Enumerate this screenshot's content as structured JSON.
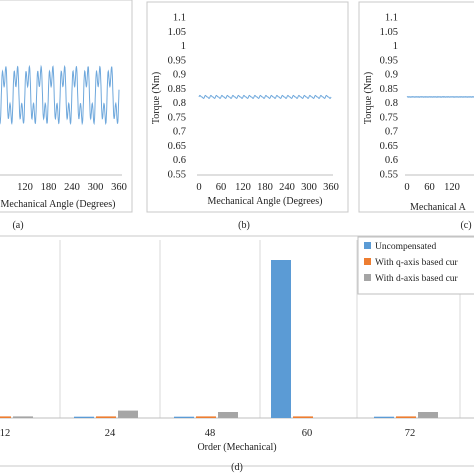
{
  "chart_data": [
    {
      "type": "line",
      "panel": "(a)",
      "xlabel": "Mechanical Angle (Degrees)",
      "x_ticks_visible": [
        "120",
        "180",
        "240",
        "300",
        "360"
      ],
      "xlim": [
        0,
        360
      ],
      "series": [
        {
          "color": "#6fa8dc",
          "pattern": "high-amplitude periodic ripple",
          "cycles": 12
        }
      ]
    },
    {
      "type": "line",
      "panel": "(b)",
      "xlabel": "Mechanical Angle (Degrees)",
      "ylabel": "Torque (Nm)",
      "x_ticks": [
        "0",
        "60",
        "120",
        "180",
        "240",
        "300",
        "360"
      ],
      "y_ticks": [
        "0.55",
        "0.6",
        "0.65",
        "0.7",
        "0.75",
        "0.8",
        "0.85",
        "0.9",
        "0.95",
        "1",
        "1.05",
        "1.1"
      ],
      "xlim": [
        0,
        360
      ],
      "ylim": [
        0.55,
        1.1
      ],
      "series": [
        {
          "color": "#6fa8dc",
          "mean": 0.82,
          "ripple_pk_pk": 0.012,
          "cycles": 24
        }
      ]
    },
    {
      "type": "line",
      "panel": "(c)",
      "xlabel_visible": "Mechanical A",
      "ylabel": "Torque (Nm)",
      "x_ticks_visible": [
        "0",
        "60",
        "120"
      ],
      "y_ticks": [
        "0.55",
        "0.6",
        "0.65",
        "0.7",
        "0.75",
        "0.8",
        "0.85",
        "0.9",
        "0.95",
        "1",
        "1.05",
        "1.1"
      ],
      "ylim": [
        0.55,
        1.1
      ],
      "series": [
        {
          "color": "#6fa8dc",
          "mean": 0.82,
          "ripple_pk_pk": 0.002
        }
      ]
    },
    {
      "type": "bar",
      "panel": "(d)",
      "xlabel": "Order (Mechanical)",
      "categories": [
        "12",
        "24",
        "48",
        "60",
        "72"
      ],
      "ylim": [
        0,
        1
      ],
      "series": [
        {
          "name": "Uncompensated",
          "color": "#5b9bd5",
          "values": [
            0.008,
            0.008,
            0.008,
            1.0,
            0.008
          ]
        },
        {
          "name": "With q-axis based cur",
          "color": "#ed7d31",
          "values": [
            0.01,
            0.01,
            0.01,
            0.01,
            0.01
          ]
        },
        {
          "name": "With d-axis based cur",
          "color": "#a5a5a5",
          "values": [
            0.01,
            0.047,
            0.038,
            0.0,
            0.038
          ]
        }
      ]
    }
  ],
  "captions": {
    "a": "(a)",
    "b": "(b)",
    "c": "(c)",
    "d": "(d)"
  }
}
